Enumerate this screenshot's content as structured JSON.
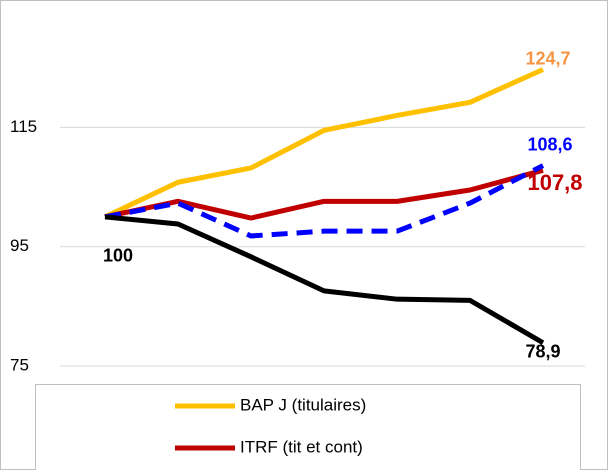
{
  "chart_data": {
    "type": "line",
    "categories": [
      null,
      null,
      null,
      null,
      null,
      null,
      null
    ],
    "ylim": [
      75,
      133
    ],
    "yticks": [
      75,
      95,
      115
    ],
    "grid": true,
    "series": [
      {
        "name": "BAP J (titulaires)",
        "color": "#FFC000",
        "label_color": "#F79646",
        "values": [
          100,
          105.8,
          108.2,
          114.5,
          117,
          119.2,
          124.7
        ],
        "value_labels": [
          null,
          null,
          null,
          null,
          null,
          null,
          "124,7"
        ]
      },
      {
        "name": "ITRF (tit et cont)",
        "color": "#C00000",
        "values": [
          100,
          102.6,
          99.8,
          102.6,
          102.6,
          104.5,
          107.8
        ],
        "value_labels": [
          null,
          null,
          null,
          null,
          null,
          null,
          "107,8"
        ]
      },
      {
        "color": "#0000FF",
        "dashed": true,
        "values": [
          100,
          102.3,
          96.8,
          97.6,
          97.6,
          102.3,
          108.6
        ],
        "value_labels": [
          null,
          null,
          null,
          null,
          null,
          null,
          "108,6"
        ]
      },
      {
        "color": "#000000",
        "values": [
          100,
          98.8,
          93.3,
          87.6,
          86.2,
          86,
          78.9
        ],
        "value_labels": [
          "100",
          null,
          null,
          null,
          null,
          null,
          "78,9"
        ]
      }
    ],
    "legend": "bottom"
  }
}
